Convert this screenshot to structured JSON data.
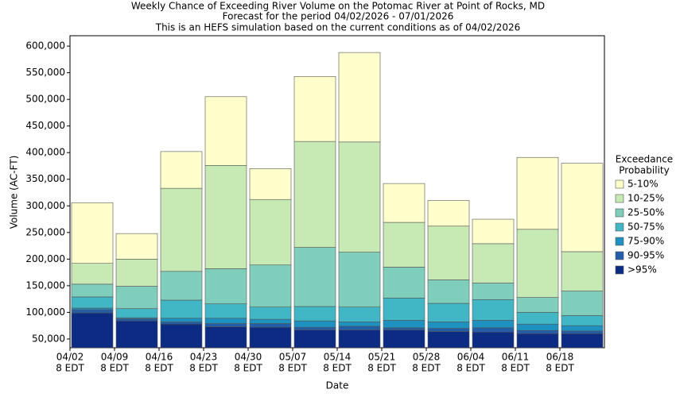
{
  "chart_data": {
    "type": "bar",
    "title": [
      "Weekly Chance of Exceeding River Volume on the Potomac River at Point of Rocks, MD",
      "Forecast for the period 04/02/2026 - 07/01/2026",
      "This is an HEFS simulation based on the current conditions as of 04/02/2026"
    ],
    "x_label": "Date",
    "y_label": "Volume (AC-FT)",
    "legend_title": [
      "Exceedance",
      "Probability"
    ],
    "categories": [
      [
        "04/02",
        "8 EDT"
      ],
      [
        "04/09",
        "8 EDT"
      ],
      [
        "04/16",
        "8 EDT"
      ],
      [
        "04/23",
        "8 EDT"
      ],
      [
        "04/30",
        "8 EDT"
      ],
      [
        "05/07",
        "8 EDT"
      ],
      [
        "05/14",
        "8 EDT"
      ],
      [
        "05/21",
        "8 EDT"
      ],
      [
        "05/28",
        "8 EDT"
      ],
      [
        "06/04",
        "8 EDT"
      ],
      [
        "06/11",
        "8 EDT"
      ],
      [
        "06/18",
        "8 EDT"
      ]
    ],
    "series": [
      {
        "name": ">95%",
        "color": "#0c2c84",
        "values": [
          99000,
          84000,
          78000,
          73000,
          72000,
          67000,
          67000,
          67000,
          64000,
          63000,
          60000,
          60000
        ]
      },
      {
        "name": "90-95%",
        "color": "#225ea8",
        "values": [
          105000,
          88000,
          82000,
          79000,
          79000,
          72000,
          74000,
          71000,
          70000,
          71000,
          66000,
          65000
        ]
      },
      {
        "name": "75-90%",
        "color": "#1d91c0",
        "values": [
          108000,
          90000,
          89000,
          89000,
          87000,
          84000,
          82000,
          85000,
          82000,
          85000,
          78000,
          75000
        ]
      },
      {
        "name": "50-75%",
        "color": "#41b6c4",
        "values": [
          129000,
          107000,
          123000,
          116000,
          110000,
          111000,
          110000,
          127000,
          117000,
          124000,
          100000,
          94000
        ]
      },
      {
        "name": "25-50%",
        "color": "#7fcdbb",
        "values": [
          153000,
          149000,
          177000,
          182000,
          189000,
          222000,
          213000,
          185000,
          161000,
          155000,
          128000,
          140000
        ]
      },
      {
        "name": "10-25%",
        "color": "#c7e9b4",
        "values": [
          192000,
          200000,
          333000,
          376000,
          312000,
          421000,
          420000,
          269000,
          262000,
          229000,
          256000,
          214000
        ]
      },
      {
        "name": "5-10%",
        "color": "#ffffcc",
        "values": [
          306000,
          248000,
          402000,
          505000,
          370000,
          543000,
          588000,
          342000,
          310000,
          275000,
          391000,
          380000
        ]
      }
    ],
    "ylim": [
      33500,
      619500
    ],
    "yticks": [
      {
        "value": 50000,
        "label": "50,000"
      },
      {
        "value": 100000,
        "label": "100,000"
      },
      {
        "value": 150000,
        "label": "150,000"
      },
      {
        "value": 200000,
        "label": "200,000"
      },
      {
        "value": 250000,
        "label": "250,000"
      },
      {
        "value": 300000,
        "label": "300,000"
      },
      {
        "value": 350000,
        "label": "350,000"
      },
      {
        "value": 400000,
        "label": "400,000"
      },
      {
        "value": 450000,
        "label": "450,000"
      },
      {
        "value": 500000,
        "label": "500,000"
      },
      {
        "value": 550000,
        "label": "550,000"
      },
      {
        "value": 600000,
        "label": "600,000"
      }
    ],
    "grid": false
  }
}
